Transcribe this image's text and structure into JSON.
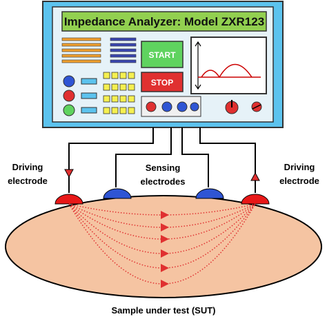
{
  "analyzer": {
    "title": "Impedance Analyzer: Model ZXR123",
    "start_button": "START",
    "stop_button": "STOP"
  },
  "labels": {
    "left_driving": [
      "Driving",
      "electrode"
    ],
    "sensing": [
      "Sensing",
      "electrodes"
    ],
    "right_driving": [
      "Driving",
      "electrode"
    ],
    "sample": "Sample under test (SUT)"
  }
}
